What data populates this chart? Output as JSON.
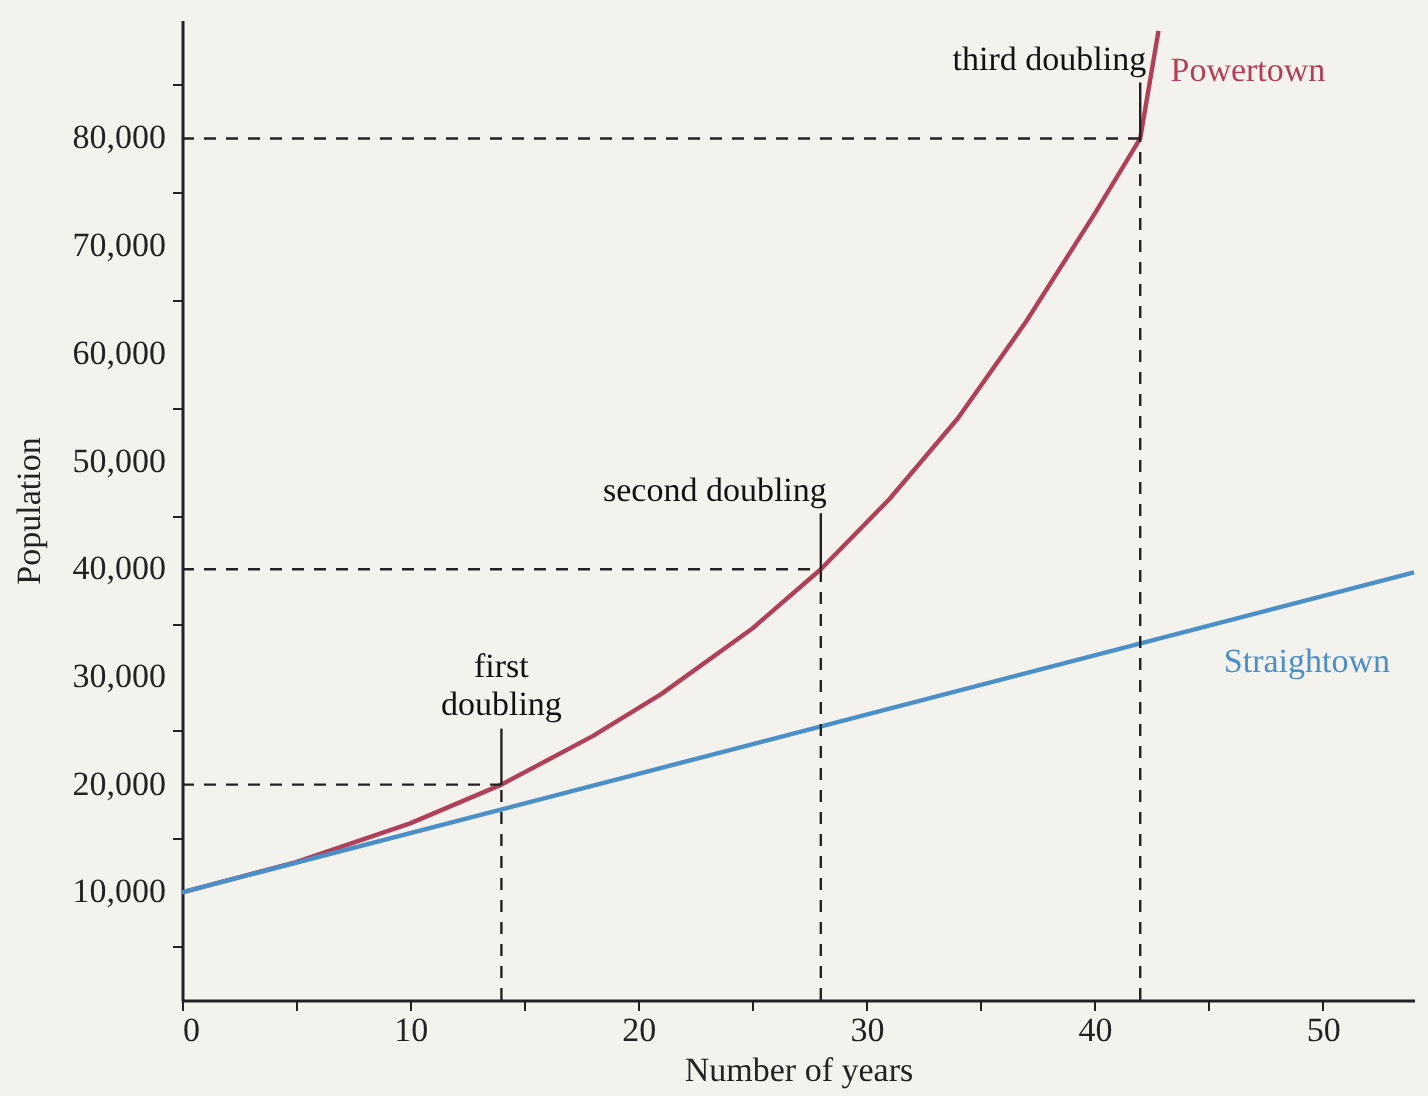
{
  "chart_data": {
    "type": "line",
    "xlabel": "Number of years",
    "ylabel": "Population",
    "series": [
      {
        "name": "Powertown",
        "color": "#b0405a",
        "x": [
          0,
          5,
          10,
          14,
          18,
          21,
          25,
          28,
          31,
          34,
          37,
          40,
          42,
          42.8
        ],
        "values": [
          10000,
          12800,
          16400,
          20000,
          24500,
          28400,
          34500,
          40000,
          46500,
          54000,
          63000,
          73000,
          80000,
          90000
        ]
      },
      {
        "name": "Straightown",
        "color": "#4a8fc8",
        "x": [
          0,
          54
        ],
        "values": [
          10000,
          39700
        ]
      }
    ],
    "xlim": [
      0,
      54
    ],
    "ylim": [
      0,
      91000
    ],
    "xticks": [
      0,
      {
        "value": 5,
        "label": null
      },
      10,
      {
        "value": 15,
        "label": null
      },
      20,
      {
        "value": 25,
        "label": null
      },
      30,
      {
        "value": 35,
        "label": null
      },
      40,
      {
        "value": 45,
        "label": null
      },
      50
    ],
    "yticks": [
      {
        "value": 5000,
        "label": null
      },
      {
        "value": 10000,
        "label": "10,000"
      },
      {
        "value": 15000,
        "label": null
      },
      {
        "value": 20000,
        "label": "20,000"
      },
      {
        "value": 25000,
        "label": null
      },
      {
        "value": 30000,
        "label": "30,000"
      },
      {
        "value": 35000,
        "label": null
      },
      {
        "value": 40000,
        "label": "40,000"
      },
      {
        "value": 45000,
        "label": null
      },
      {
        "value": 50000,
        "label": "50,000"
      },
      {
        "value": 55000,
        "label": null
      },
      {
        "value": 60000,
        "label": "60,000"
      },
      {
        "value": 65000,
        "label": null
      },
      {
        "value": 70000,
        "label": "70,000"
      },
      {
        "value": 75000,
        "label": null
      },
      {
        "value": 80000,
        "label": "80,000"
      },
      {
        "value": 85000,
        "label": null
      }
    ],
    "annotations": [
      {
        "text": "first\ndoubling",
        "x": 14,
        "y": 20000
      },
      {
        "text": "second doubling",
        "x": 28,
        "y": 40000
      },
      {
        "text": "third doubling",
        "x": 42,
        "y": 80000
      }
    ],
    "ref_lines": [
      {
        "axis": "y",
        "value": 20000,
        "line_style": "dashed"
      },
      {
        "axis": "y",
        "value": 40000,
        "line_style": "dashed"
      },
      {
        "axis": "y",
        "value": 80000,
        "line_style": "dashed"
      },
      {
        "axis": "x",
        "value": 14,
        "line_style": "dashed"
      },
      {
        "axis": "x",
        "value": 28,
        "line_style": "dashed"
      },
      {
        "axis": "x",
        "value": 42,
        "line_style": "dashed"
      }
    ],
    "grid": false,
    "marker": "none",
    "line_style": "solid"
  }
}
